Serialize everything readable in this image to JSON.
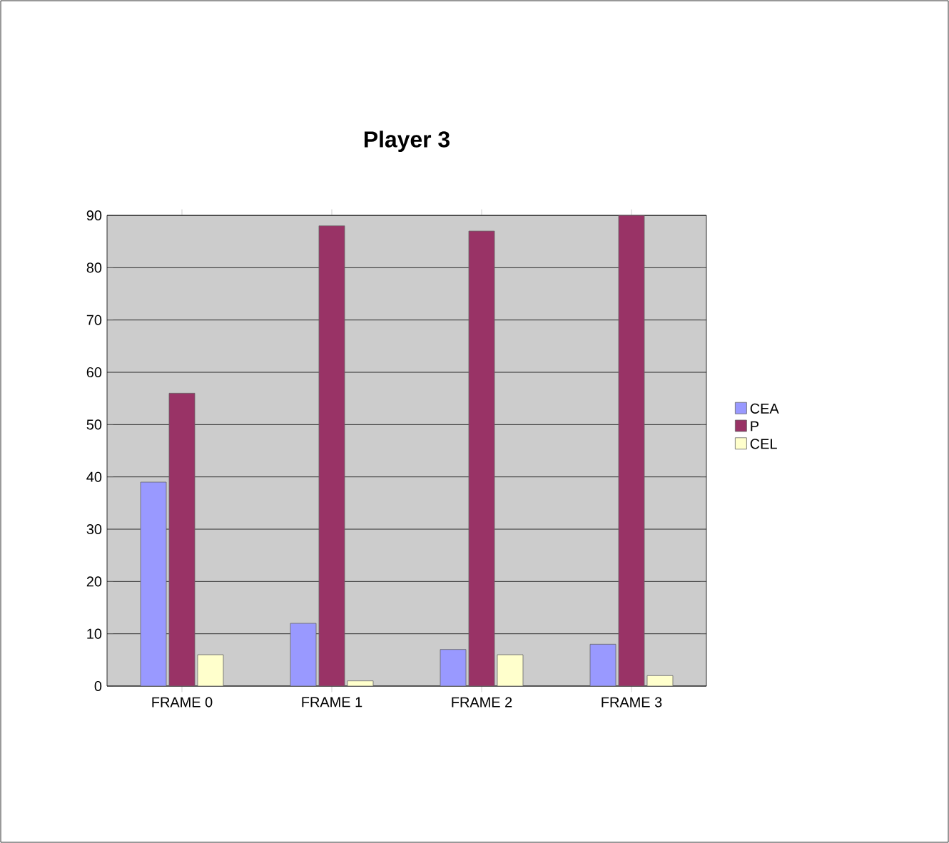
{
  "chart_data": {
    "type": "bar",
    "title": "Player 3",
    "categories": [
      "FRAME 0",
      "FRAME 1",
      "FRAME 2",
      "FRAME 3"
    ],
    "series": [
      {
        "name": "CEA",
        "color": "#9999ff",
        "values": [
          39,
          12,
          7,
          8
        ]
      },
      {
        "name": "P",
        "color": "#993366",
        "values": [
          56,
          88,
          87,
          90
        ]
      },
      {
        "name": "CEL",
        "color": "#ffffcc",
        "values": [
          6,
          1,
          6,
          2
        ]
      }
    ],
    "ylim": [
      0,
      90
    ],
    "yticks": [
      0,
      10,
      20,
      30,
      40,
      50,
      60,
      70,
      80,
      90
    ],
    "grid": "y",
    "legend": "right"
  }
}
